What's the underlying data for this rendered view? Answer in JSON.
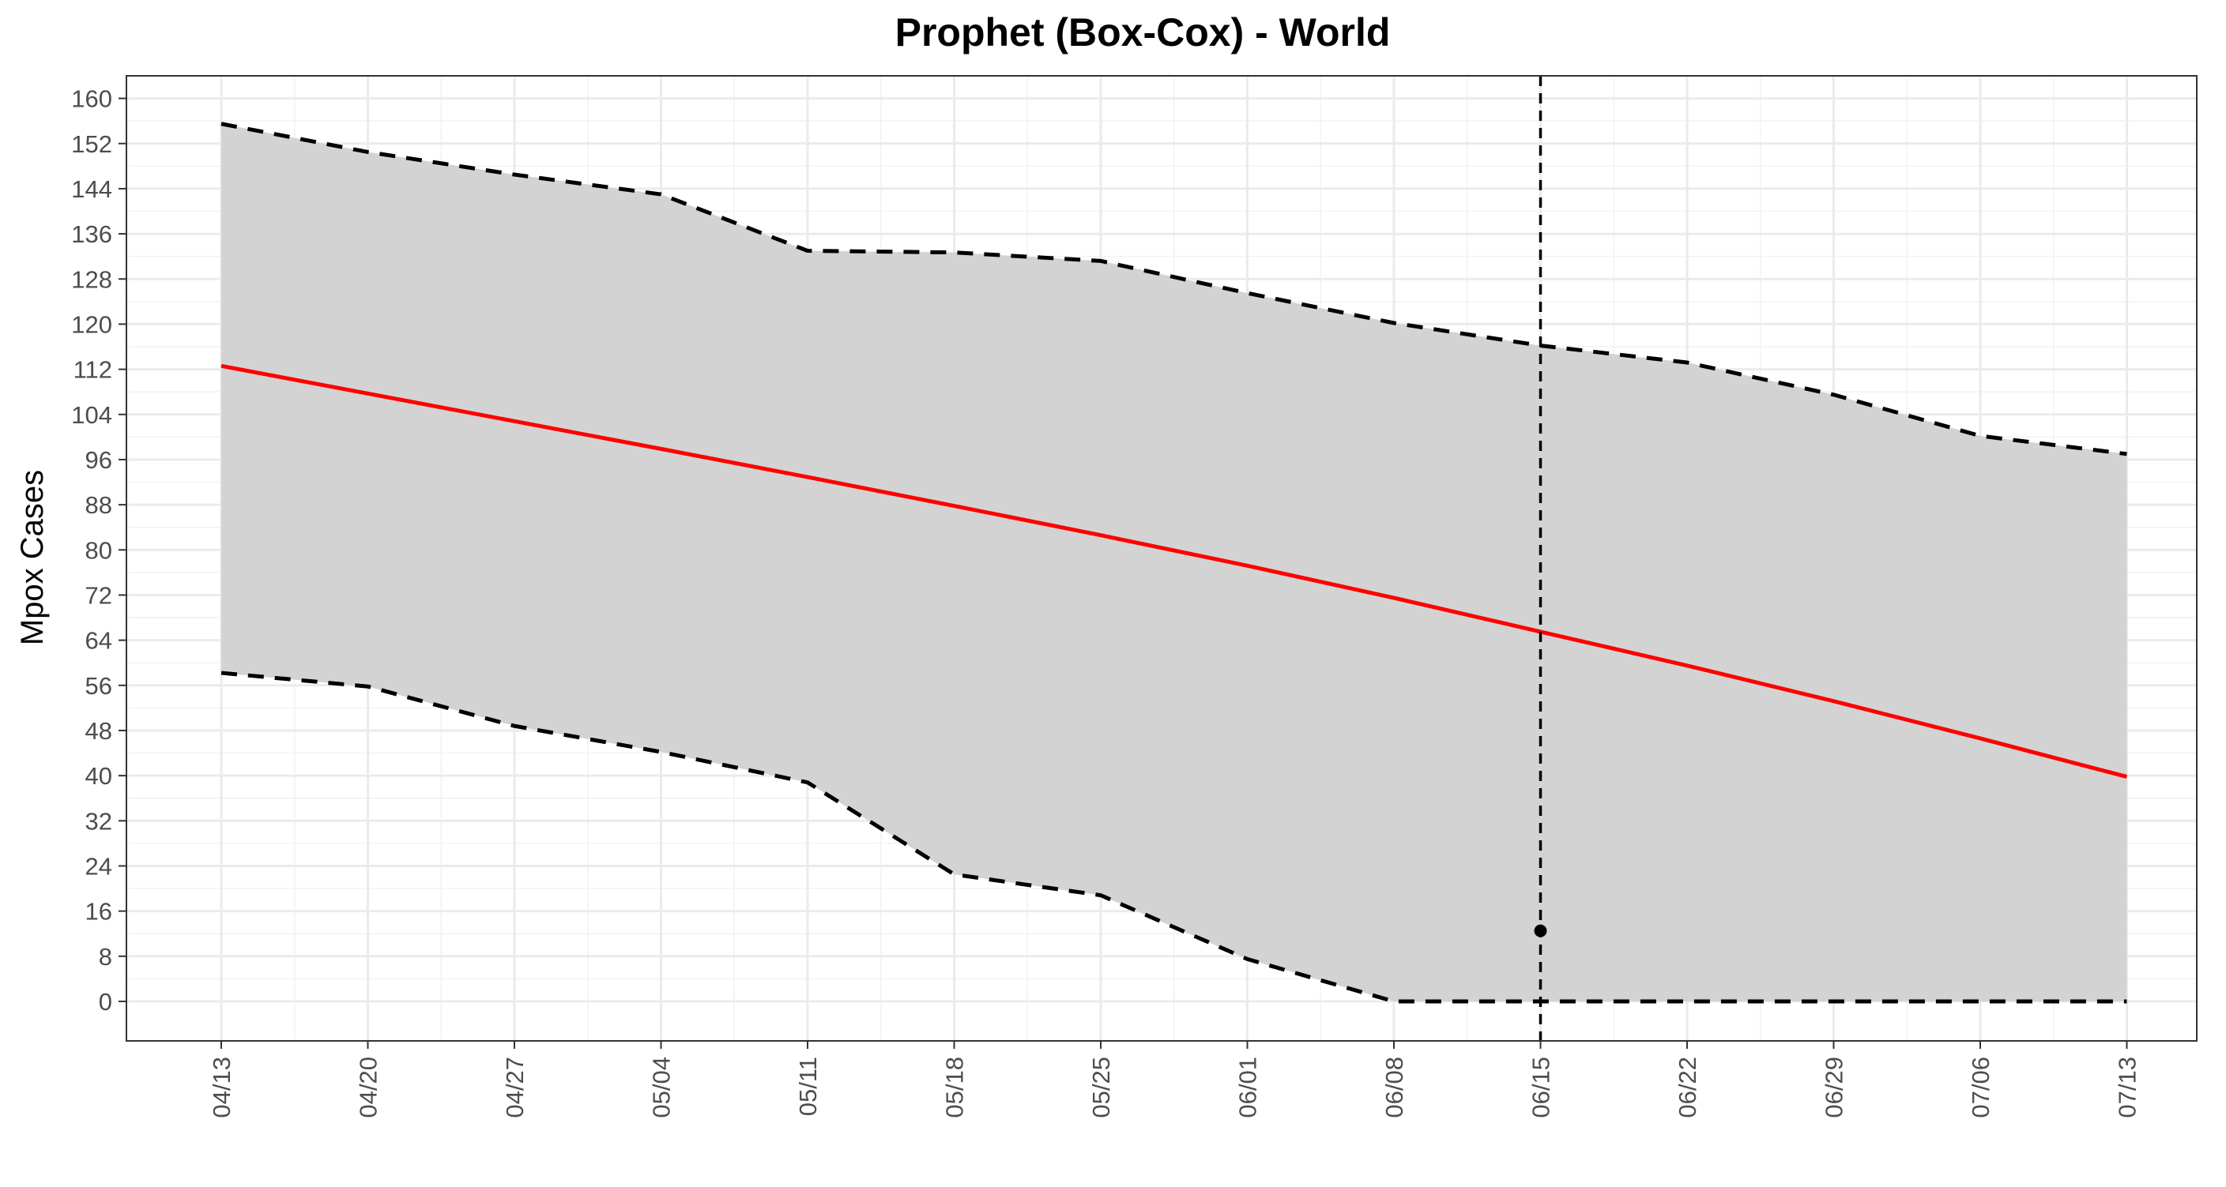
{
  "chart_data": {
    "type": "line",
    "title": "Prophet (Box-Cox) - World",
    "xlabel": "",
    "ylabel": "Mpox Cases",
    "x": [
      "04/13",
      "04/20",
      "04/27",
      "05/04",
      "05/11",
      "05/18",
      "05/25",
      "06/01",
      "06/08",
      "06/15",
      "06/22",
      "06/29",
      "07/06",
      "07/13"
    ],
    "ylim": [
      -7,
      164
    ],
    "yticks": [
      0,
      8,
      16,
      24,
      32,
      40,
      48,
      56,
      64,
      72,
      80,
      88,
      96,
      104,
      112,
      120,
      128,
      136,
      144,
      152,
      160
    ],
    "grid": true,
    "legend": "none",
    "series": [
      {
        "role": "forecast",
        "style": "solid",
        "color": "#ff0000",
        "values": [
          112.6,
          107.7,
          102.8,
          97.9,
          92.9,
          87.8,
          82.6,
          77.2,
          71.5,
          65.5,
          59.5,
          53.2,
          46.6,
          39.8
        ]
      },
      {
        "role": "upper-bound",
        "style": "dashed",
        "color": "#000000",
        "values": [
          155.5,
          150.5,
          146.5,
          143.0,
          133.0,
          132.7,
          131.2,
          125.5,
          120.2,
          116.2,
          113.2,
          107.5,
          100.2,
          97.0
        ]
      },
      {
        "role": "lower-bound",
        "style": "dashed",
        "color": "#000000",
        "values": [
          58.2,
          55.8,
          48.8,
          44.2,
          38.8,
          22.5,
          18.8,
          7.5,
          0.0,
          0.0,
          0.0,
          0.0,
          0.0,
          0.0
        ]
      }
    ],
    "observed_points": [
      {
        "x": "06/15",
        "y": 12.5
      }
    ],
    "vertical_marker": {
      "x": "06/15",
      "style": "dashed",
      "color": "#000000"
    },
    "band_color": "#d3d3d3"
  }
}
